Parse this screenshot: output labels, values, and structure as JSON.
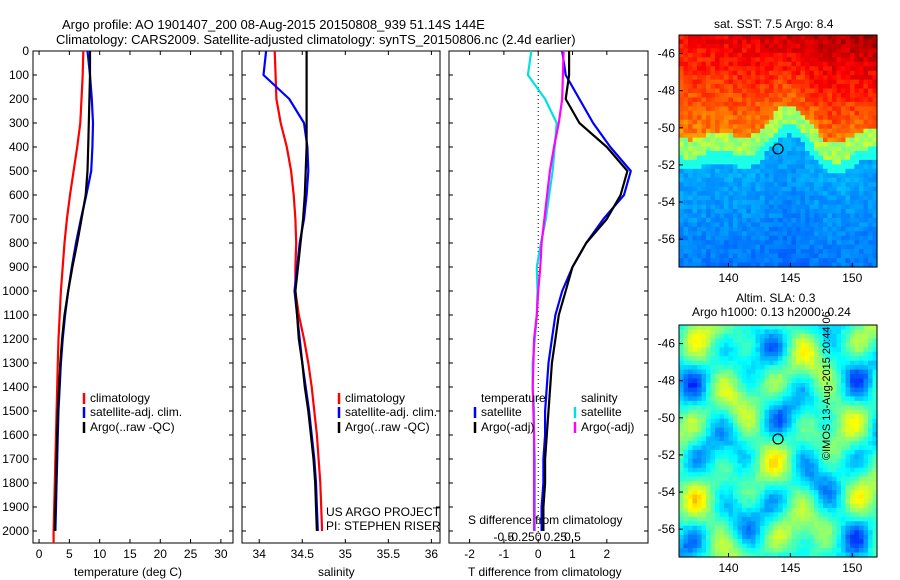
{
  "header": {
    "line1": "Argo profile: AO 1901407_200 08-Aug-2015 20150808_939 51.14S 144E",
    "line2": "Climatology: CARS2009. Satellite-adjusted climatology: synTS_20150806.nc (2.4d earlier)"
  },
  "panels": {
    "temperature": {
      "xlabel": "temperature (deg C)",
      "legend": [
        "climatology",
        "satellite-adj. clim.",
        "Argo(..raw -QC)"
      ]
    },
    "salinity": {
      "xlabel": "salinity",
      "legend": [
        "climatology",
        "satellite-adj. clim.",
        "Argo(..raw -QC)"
      ],
      "project_line1": "US ARGO PROJECT",
      "project_line2": "PI: STEPHEN RISER"
    },
    "difference": {
      "xlabel": "T difference from climatology",
      "top_label": "S difference from climatology",
      "legend_temperature_header": "temperature",
      "legend_salinity_header": "salinity",
      "legend_temperature": [
        "satellite",
        "Argo(-adj)"
      ],
      "legend_salinity": [
        "satellite",
        "Argo(-adj)"
      ]
    },
    "sst_map": {
      "title": "sat. SST: 7.5  Argo: 8.4"
    },
    "sla_map": {
      "title1": "Altim. SLA: 0.3",
      "title2": "Argo h1000: 0.13  h2000: 0.24"
    },
    "credit": "©IMOS 13-Aug-2015 20:44:06"
  },
  "colors": {
    "climatology": "#ff0000",
    "satellite": "#0000ff",
    "argo": "#000000",
    "sal_satellite": "#00e0e0",
    "sal_argo": "#ff00ff"
  },
  "chart_data": [
    {
      "type": "line",
      "name": "temperature",
      "xlabel": "temperature (deg C)",
      "ylabel": "",
      "xlim": [
        -1,
        32
      ],
      "ylim": [
        2050,
        0
      ],
      "xticks": [
        0,
        5,
        10,
        15,
        20,
        25,
        30
      ],
      "yticks": [
        0,
        100,
        200,
        300,
        400,
        500,
        600,
        700,
        800,
        900,
        1000,
        1100,
        1200,
        1300,
        1400,
        1500,
        1600,
        1700,
        1800,
        1900,
        2000
      ],
      "series": [
        {
          "name": "climatology",
          "color": "#ff0000",
          "x": [
            7.3,
            7.2,
            7.0,
            6.8,
            6.3,
            5.7,
            5.1,
            4.6,
            4.2,
            3.9,
            3.6,
            3.4,
            3.2,
            3.1,
            3.0,
            2.9,
            2.8,
            2.7,
            2.6,
            2.5,
            2.4,
            2.4
          ],
          "y": [
            0,
            100,
            200,
            300,
            400,
            500,
            600,
            700,
            800,
            900,
            1000,
            1100,
            1200,
            1300,
            1400,
            1500,
            1600,
            1700,
            1800,
            1900,
            2000,
            2050
          ]
        },
        {
          "name": "satellite-adj. clim.",
          "color": "#0000ff",
          "x": [
            8.0,
            8.4,
            8.7,
            8.9,
            8.8,
            8.6,
            7.8,
            6.9,
            6.1,
            5.4,
            4.8,
            4.3,
            3.9,
            3.6,
            3.4,
            3.2,
            3.1,
            3.0,
            2.9,
            2.8,
            2.7
          ],
          "y": [
            0,
            100,
            200,
            300,
            400,
            500,
            600,
            700,
            800,
            900,
            1000,
            1100,
            1200,
            1300,
            1400,
            1500,
            1600,
            1700,
            1800,
            1900,
            2000
          ]
        },
        {
          "name": "Argo(..raw -QC)",
          "color": "#000000",
          "x": [
            8.4,
            8.4,
            8.3,
            8.2,
            8.1,
            8.0,
            7.7,
            7.0,
            6.3,
            5.5,
            4.8,
            4.2,
            3.8,
            3.5,
            3.3,
            3.1,
            3.0,
            2.9,
            2.8,
            2.7,
            2.6
          ],
          "y": [
            0,
            100,
            200,
            300,
            400,
            500,
            600,
            700,
            800,
            900,
            1000,
            1100,
            1200,
            1300,
            1400,
            1500,
            1600,
            1700,
            1800,
            1900,
            2000
          ]
        }
      ]
    },
    {
      "type": "line",
      "name": "salinity",
      "xlabel": "salinity",
      "ylabel": "",
      "xlim": [
        33.8,
        36.1
      ],
      "ylim": [
        2050,
        0
      ],
      "xticks": [
        34,
        34.5,
        35,
        35.5,
        36
      ],
      "series": [
        {
          "name": "climatology",
          "color": "#ff0000",
          "x": [
            34.18,
            34.19,
            34.2,
            34.25,
            34.32,
            34.37,
            34.4,
            34.42,
            34.43,
            34.42,
            34.42,
            34.46,
            34.52,
            34.57,
            34.61,
            34.64,
            34.67,
            34.69,
            34.71,
            34.72,
            34.73
          ],
          "y": [
            0,
            100,
            200,
            300,
            400,
            500,
            600,
            700,
            800,
            900,
            1000,
            1100,
            1200,
            1300,
            1400,
            1500,
            1600,
            1700,
            1800,
            1900,
            2000
          ]
        },
        {
          "name": "satellite-adj. clim.",
          "color": "#0000ff",
          "x": [
            34.08,
            34.05,
            34.35,
            34.52,
            34.56,
            34.57,
            34.55,
            34.52,
            34.47,
            34.44,
            34.41,
            34.44,
            34.47,
            34.5,
            34.54,
            34.58,
            34.61,
            34.64,
            34.66,
            34.67,
            34.68
          ],
          "y": [
            0,
            100,
            200,
            300,
            400,
            500,
            600,
            700,
            800,
            900,
            1000,
            1100,
            1200,
            1300,
            1400,
            1500,
            1600,
            1700,
            1800,
            1900,
            2000
          ]
        },
        {
          "name": "Argo(..raw -QC)",
          "color": "#000000",
          "x": [
            34.55,
            34.55,
            34.55,
            34.55,
            34.55,
            34.54,
            34.53,
            34.51,
            34.48,
            34.45,
            34.42,
            34.44,
            34.46,
            34.5,
            34.53,
            34.57,
            34.6,
            34.63,
            34.65,
            34.66,
            34.67
          ],
          "y": [
            0,
            100,
            200,
            300,
            400,
            500,
            600,
            700,
            800,
            900,
            1000,
            1100,
            1200,
            1300,
            1400,
            1500,
            1600,
            1700,
            1800,
            1900,
            2000
          ]
        }
      ]
    },
    {
      "type": "line",
      "name": "difference",
      "xlabel": "T difference from climatology",
      "xlim": [
        -2.6,
        3.2
      ],
      "ylim": [
        2050,
        0
      ],
      "xticks": [
        -2,
        -1,
        0,
        1,
        2
      ],
      "secondary_xlabel": "S difference from climatology",
      "secondary_xticks": [
        "-0.5",
        "-0.25",
        "0",
        "0.25",
        "0.5"
      ],
      "series": [
        {
          "name": "temperature satellite",
          "color": "#0000ff",
          "x": [
            0.7,
            0.8,
            1.2,
            1.6,
            2.1,
            2.7,
            2.5,
            1.9,
            1.4,
            1.0,
            0.7,
            0.5,
            0.4,
            0.3,
            0.25,
            0.2,
            0.2,
            0.15,
            0.15,
            0.1,
            0.1
          ],
          "y": [
            0,
            100,
            200,
            300,
            400,
            500,
            600,
            700,
            800,
            900,
            1000,
            1100,
            1200,
            1300,
            1400,
            1500,
            1600,
            1700,
            1800,
            1900,
            2000
          ]
        },
        {
          "name": "temperature Argo(-adj)",
          "color": "#000000",
          "x": [
            0.9,
            0.9,
            0.8,
            1.2,
            2.0,
            2.6,
            2.4,
            2.0,
            1.4,
            1.0,
            0.8,
            0.6,
            0.5,
            0.4,
            0.35,
            0.3,
            0.25,
            0.2,
            0.2,
            0.15,
            0.15
          ],
          "y": [
            0,
            100,
            200,
            300,
            400,
            500,
            600,
            700,
            800,
            900,
            1000,
            1100,
            1200,
            1300,
            1400,
            1500,
            1600,
            1700,
            1800,
            1900,
            2000
          ]
        },
        {
          "name": "salinity satellite",
          "color": "#00e0e0",
          "x": [
            -0.1,
            -0.15,
            0.1,
            0.27,
            0.24,
            0.21,
            0.16,
            0.11,
            0.04,
            -0.02,
            -0.01,
            -0.02,
            -0.05,
            -0.08,
            -0.08,
            -0.06,
            -0.06,
            -0.05,
            -0.05,
            -0.05,
            -0.05
          ],
          "y": [
            0,
            100,
            200,
            300,
            400,
            500,
            600,
            700,
            800,
            900,
            1000,
            1100,
            1200,
            1300,
            1400,
            1500,
            1600,
            1700,
            1800,
            1900,
            2000
          ]
        },
        {
          "name": "salinity Argo(-adj)",
          "color": "#ff00ff",
          "x": [
            0.37,
            0.36,
            0.35,
            0.3,
            0.23,
            0.17,
            0.13,
            0.09,
            0.05,
            0.03,
            0.0,
            -0.02,
            -0.06,
            -0.07,
            -0.08,
            -0.07,
            -0.06,
            -0.06,
            -0.06,
            -0.06,
            -0.06
          ],
          "y": [
            0,
            100,
            200,
            300,
            400,
            500,
            600,
            700,
            800,
            900,
            1000,
            1100,
            1200,
            1300,
            1400,
            1500,
            1600,
            1700,
            1800,
            1900,
            2000
          ]
        }
      ]
    },
    {
      "type": "heatmap",
      "name": "sst_map",
      "title": "sat. SST: 7.5  Argo: 8.4",
      "xlim": [
        136,
        152
      ],
      "ylim": [
        -57.5,
        -45
      ],
      "xticks": [
        140,
        145,
        150
      ],
      "yticks": [
        -46,
        -48,
        -50,
        -52,
        -54,
        -56
      ],
      "marker": {
        "lon": 144,
        "lat": -51.14
      }
    },
    {
      "type": "heatmap",
      "name": "sla_map",
      "title": "Altim. SLA: 0.3",
      "xlim": [
        136,
        152
      ],
      "ylim": [
        -57.5,
        -45
      ],
      "xticks": [
        140,
        145,
        150
      ],
      "yticks": [
        -46,
        -48,
        -50,
        -52,
        -54,
        -56
      ],
      "marker": {
        "lon": 144,
        "lat": -51.14
      }
    }
  ]
}
